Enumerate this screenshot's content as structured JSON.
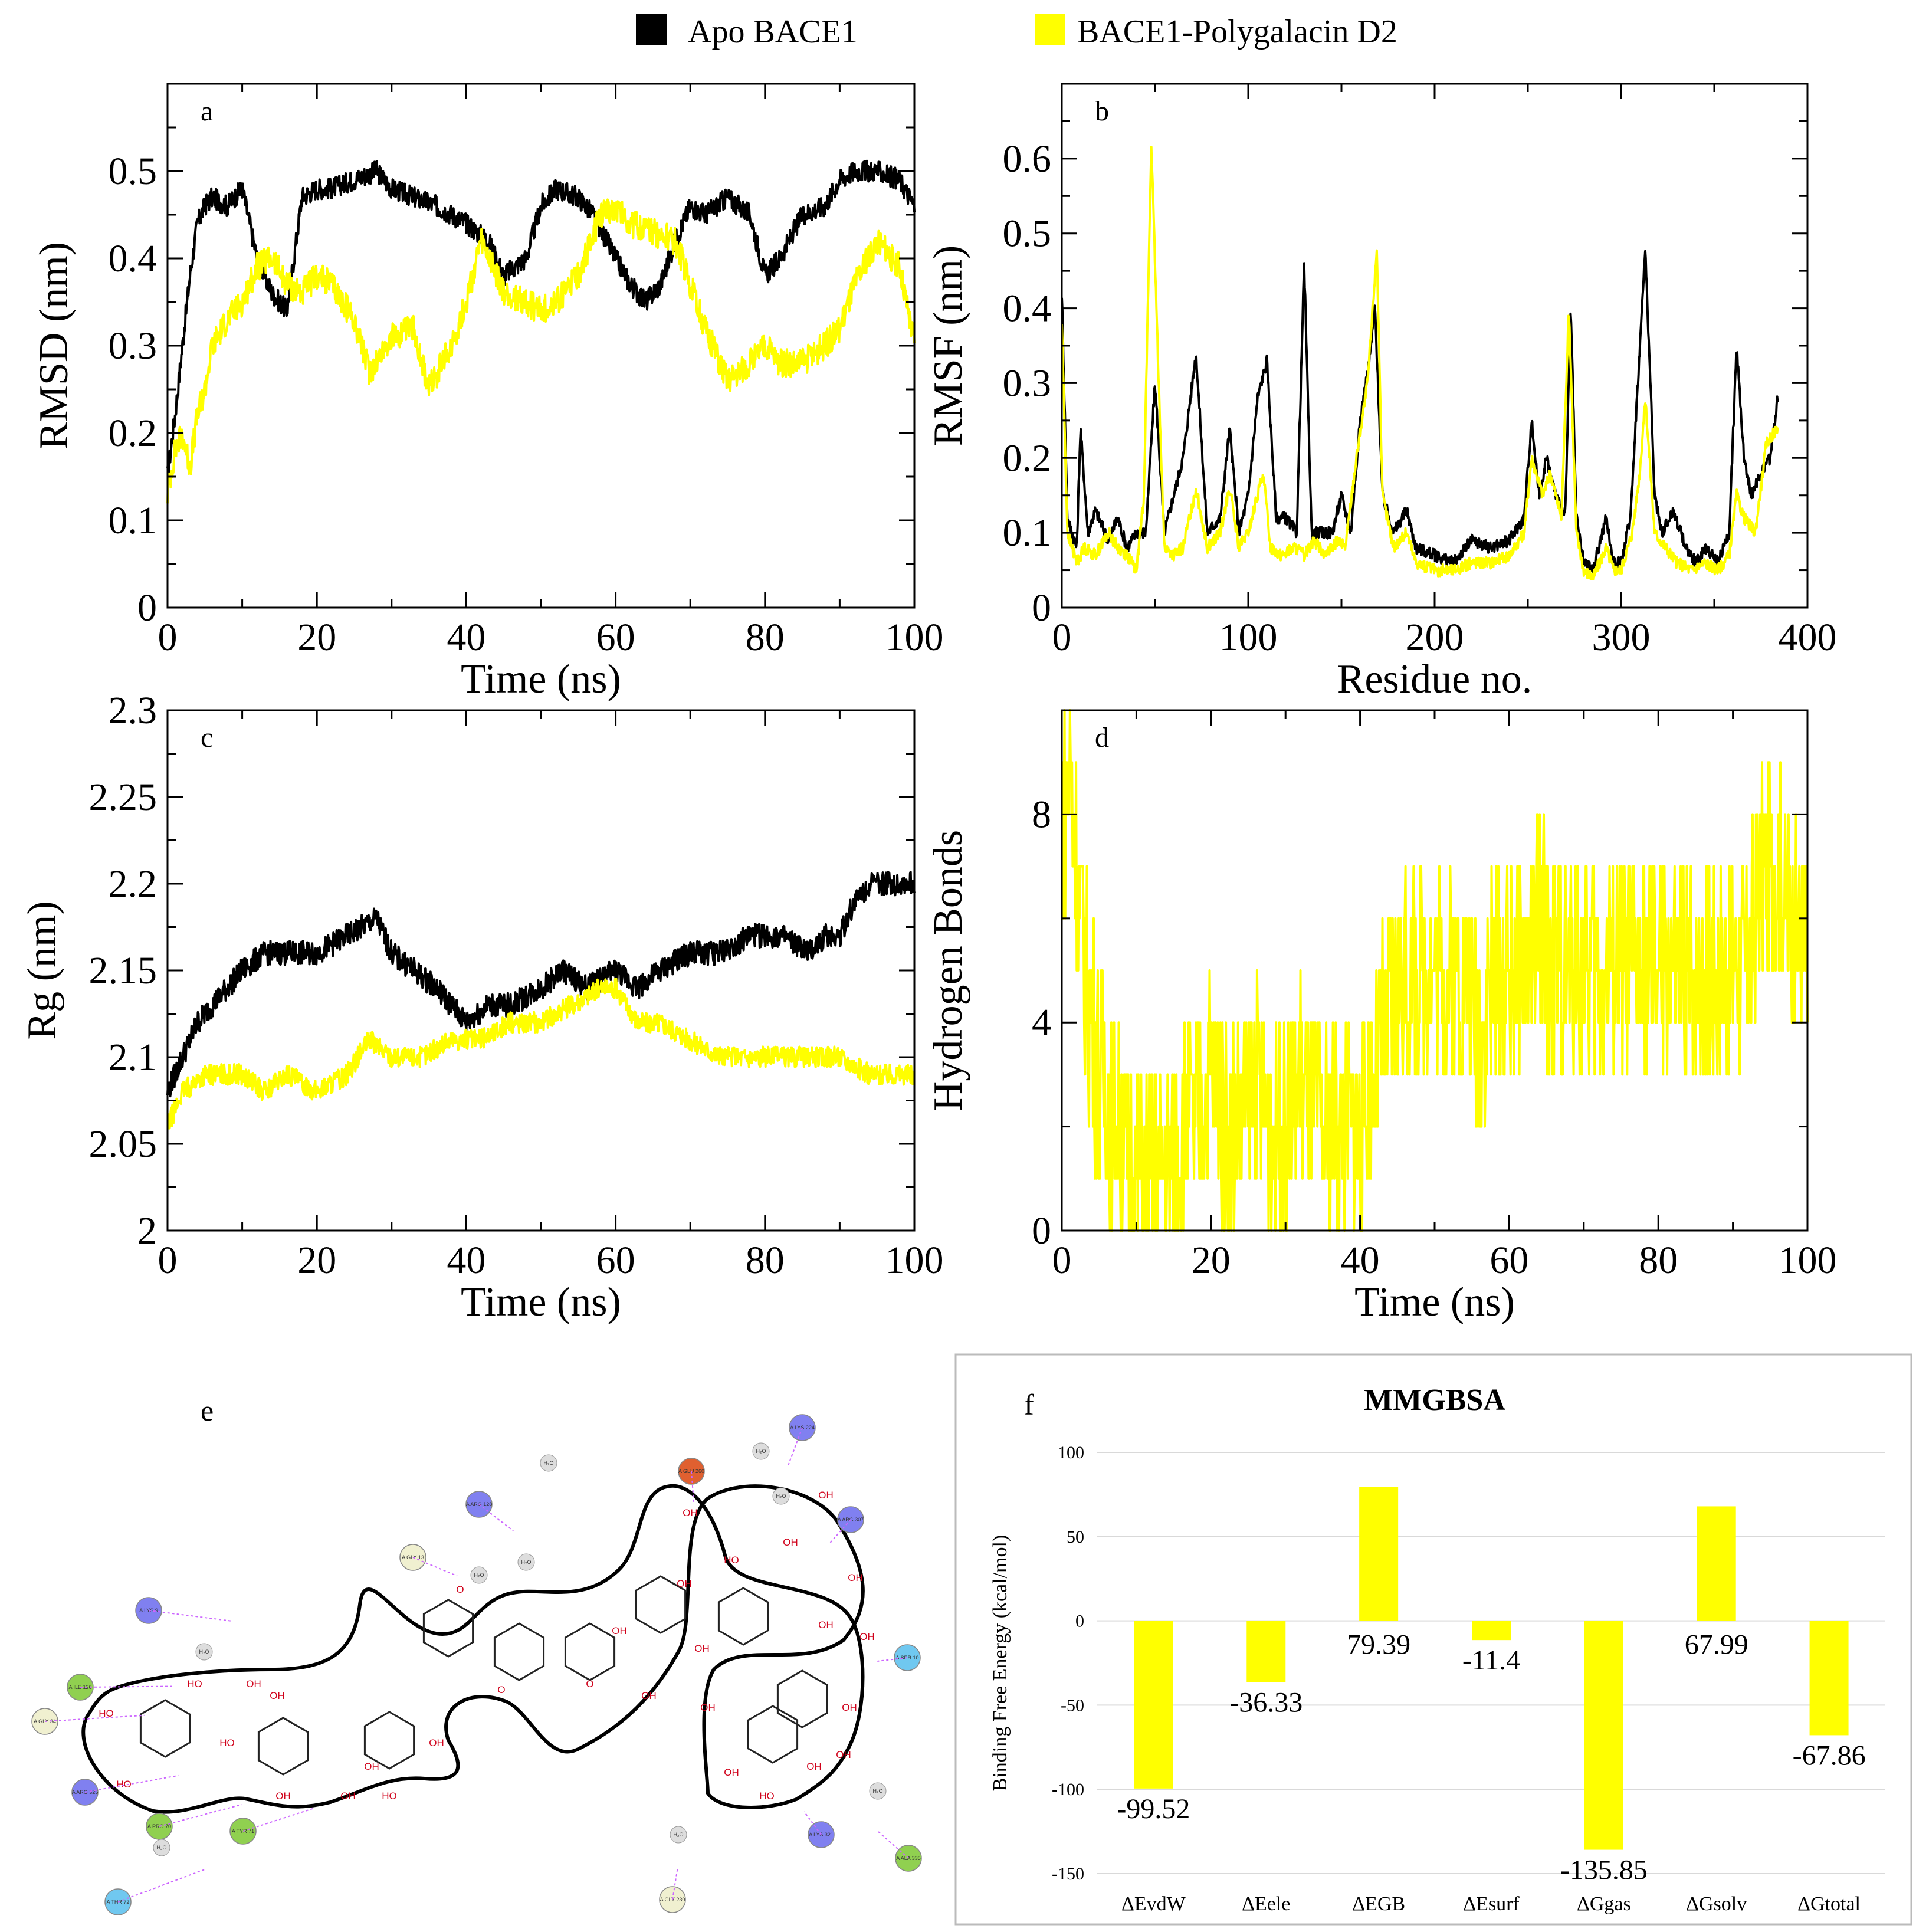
{
  "legend": [
    {
      "name": "Apo BACE1",
      "color": "#000000"
    },
    {
      "name": "BACE1-Polygalacin D2",
      "color": "#ffff00"
    }
  ],
  "colors": {
    "apo": "#000000",
    "complex": "#ffff00",
    "axis": "#000000",
    "panel_f_border": "#bbbbbb",
    "ligand_o": "#d0021b",
    "interaction": "#cc66ff"
  },
  "chart_data": [
    {
      "panel": "a",
      "type": "line",
      "xlabel": "Time (ns)",
      "ylabel": "RMSD (nm)",
      "xlim": [
        0,
        100
      ],
      "ylim": [
        0,
        0.6
      ],
      "xticks": [
        0,
        20,
        40,
        60,
        80,
        100
      ],
      "yticks": [
        0,
        0.1,
        0.2,
        0.3,
        0.4,
        0.5
      ],
      "ytick_labels": [
        "0",
        "0.1",
        "0.2",
        "0.3",
        "0.4",
        "0.5"
      ],
      "series": [
        {
          "name": "Apo BACE1",
          "color": "#000000",
          "noise": 0.012,
          "x": [
            0,
            1,
            2,
            3,
            4,
            5,
            6,
            8,
            10,
            12,
            14,
            16,
            18,
            20,
            22,
            25,
            28,
            30,
            33,
            36,
            40,
            43,
            45,
            48,
            50,
            52,
            55,
            57,
            60,
            62,
            64,
            66,
            68,
            70,
            72,
            75,
            78,
            80,
            82,
            85,
            88,
            90,
            92,
            95,
            98,
            100
          ],
          "y": [
            0.15,
            0.22,
            0.3,
            0.38,
            0.44,
            0.46,
            0.47,
            0.46,
            0.48,
            0.4,
            0.36,
            0.34,
            0.47,
            0.48,
            0.48,
            0.49,
            0.5,
            0.48,
            0.47,
            0.46,
            0.44,
            0.42,
            0.38,
            0.4,
            0.46,
            0.48,
            0.47,
            0.45,
            0.4,
            0.37,
            0.35,
            0.37,
            0.42,
            0.46,
            0.45,
            0.47,
            0.45,
            0.38,
            0.4,
            0.45,
            0.46,
            0.49,
            0.5,
            0.5,
            0.49,
            0.46
          ]
        },
        {
          "name": "BACE1-Polygalacin D2",
          "color": "#ffff00",
          "noise": 0.016,
          "x": [
            0,
            1,
            2,
            3,
            4,
            5,
            6,
            8,
            10,
            12,
            14,
            16,
            18,
            20,
            22,
            25,
            27,
            30,
            33,
            35,
            38,
            40,
            42,
            45,
            48,
            50,
            52,
            55,
            58,
            60,
            62,
            65,
            68,
            70,
            72,
            75,
            78,
            80,
            82,
            85,
            88,
            90,
            92,
            95,
            98,
            100
          ],
          "y": [
            0.13,
            0.18,
            0.2,
            0.16,
            0.22,
            0.25,
            0.3,
            0.33,
            0.35,
            0.39,
            0.4,
            0.37,
            0.36,
            0.38,
            0.37,
            0.33,
            0.27,
            0.31,
            0.32,
            0.25,
            0.3,
            0.35,
            0.42,
            0.36,
            0.35,
            0.34,
            0.35,
            0.38,
            0.45,
            0.46,
            0.44,
            0.43,
            0.42,
            0.37,
            0.32,
            0.26,
            0.28,
            0.3,
            0.28,
            0.28,
            0.3,
            0.32,
            0.37,
            0.42,
            0.39,
            0.3
          ]
        }
      ]
    },
    {
      "panel": "b",
      "type": "line",
      "xlabel": "Residue no.",
      "ylabel": "RMSF (nm)",
      "xlim": [
        0,
        400
      ],
      "ylim": [
        0,
        0.7
      ],
      "xticks": [
        0,
        100,
        200,
        300,
        400
      ],
      "yticks": [
        0,
        0.1,
        0.2,
        0.3,
        0.4,
        0.5,
        0.6
      ],
      "ytick_labels": [
        "0",
        "0.1",
        "0.2",
        "0.3",
        "0.4",
        "0.5",
        "0.6"
      ],
      "series": [
        {
          "name": "Apo BACE1",
          "color": "#000000",
          "noise": 0.008,
          "x": [
            0,
            3,
            8,
            10,
            14,
            18,
            25,
            30,
            35,
            40,
            45,
            50,
            55,
            60,
            65,
            72,
            78,
            85,
            90,
            95,
            100,
            105,
            110,
            115,
            120,
            126,
            130,
            134,
            140,
            145,
            150,
            155,
            160,
            165,
            168,
            172,
            178,
            185,
            190,
            200,
            210,
            220,
            230,
            240,
            248,
            252,
            256,
            260,
            265,
            270,
            273,
            276,
            280,
            285,
            292,
            296,
            300,
            305,
            309,
            313,
            318,
            322,
            328,
            335,
            340,
            346,
            352,
            358,
            362,
            366,
            370,
            375,
            380,
            384
          ],
          "y": [
            0.42,
            0.12,
            0.08,
            0.24,
            0.1,
            0.13,
            0.09,
            0.12,
            0.08,
            0.1,
            0.1,
            0.3,
            0.1,
            0.15,
            0.2,
            0.34,
            0.1,
            0.12,
            0.24,
            0.1,
            0.15,
            0.28,
            0.33,
            0.12,
            0.12,
            0.1,
            0.46,
            0.1,
            0.1,
            0.1,
            0.15,
            0.1,
            0.25,
            0.33,
            0.4,
            0.15,
            0.1,
            0.13,
            0.08,
            0.07,
            0.06,
            0.09,
            0.08,
            0.09,
            0.12,
            0.25,
            0.15,
            0.2,
            0.15,
            0.12,
            0.4,
            0.12,
            0.06,
            0.05,
            0.12,
            0.06,
            0.06,
            0.12,
            0.3,
            0.48,
            0.15,
            0.1,
            0.13,
            0.08,
            0.06,
            0.08,
            0.06,
            0.1,
            0.35,
            0.2,
            0.15,
            0.18,
            0.2,
            0.28
          ]
        },
        {
          "name": "BACE1-Polygalacin D2",
          "color": "#ffff00",
          "noise": 0.008,
          "x": [
            0,
            3,
            8,
            12,
            18,
            25,
            30,
            35,
            40,
            44,
            48,
            52,
            55,
            60,
            65,
            72,
            78,
            85,
            90,
            95,
            100,
            108,
            112,
            118,
            125,
            130,
            135,
            142,
            148,
            152,
            158,
            164,
            169,
            172,
            178,
            185,
            190,
            200,
            210,
            220,
            230,
            240,
            248,
            252,
            258,
            262,
            268,
            272,
            276,
            280,
            285,
            292,
            296,
            300,
            306,
            310,
            313,
            318,
            324,
            330,
            338,
            345,
            352,
            358,
            362,
            366,
            372,
            378,
            384
          ],
          "y": [
            0.38,
            0.1,
            0.06,
            0.08,
            0.07,
            0.1,
            0.08,
            0.07,
            0.05,
            0.15,
            0.62,
            0.3,
            0.08,
            0.07,
            0.08,
            0.16,
            0.08,
            0.1,
            0.16,
            0.08,
            0.1,
            0.18,
            0.08,
            0.07,
            0.08,
            0.07,
            0.09,
            0.07,
            0.09,
            0.08,
            0.2,
            0.3,
            0.48,
            0.15,
            0.08,
            0.1,
            0.06,
            0.05,
            0.05,
            0.06,
            0.06,
            0.07,
            0.1,
            0.2,
            0.15,
            0.18,
            0.12,
            0.4,
            0.1,
            0.05,
            0.04,
            0.08,
            0.05,
            0.05,
            0.1,
            0.18,
            0.28,
            0.1,
            0.08,
            0.06,
            0.05,
            0.06,
            0.05,
            0.07,
            0.15,
            0.12,
            0.1,
            0.22,
            0.24
          ]
        }
      ]
    },
    {
      "panel": "c",
      "type": "line",
      "xlabel": "Time (ns)",
      "ylabel": "Rg (nm)",
      "xlim": [
        0,
        100
      ],
      "ylim": [
        2.0,
        2.3
      ],
      "xticks": [
        0,
        20,
        40,
        60,
        80,
        100
      ],
      "yticks": [
        2.0,
        2.05,
        2.1,
        2.15,
        2.2,
        2.25,
        2.3
      ],
      "ytick_labels": [
        "2",
        "2.05",
        "2.1",
        "2.15",
        "2.2",
        "2.25",
        "2.3"
      ],
      "series": [
        {
          "name": "Apo BACE1",
          "color": "#000000",
          "noise": 0.007,
          "x": [
            0,
            2,
            4,
            6,
            8,
            10,
            13,
            16,
            20,
            24,
            28,
            30,
            33,
            36,
            40,
            43,
            46,
            50,
            53,
            56,
            60,
            63,
            66,
            70,
            74,
            78,
            82,
            86,
            88,
            90,
            92,
            94,
            96,
            98,
            100
          ],
          "y": [
            2.08,
            2.1,
            2.12,
            2.13,
            2.14,
            2.15,
            2.16,
            2.16,
            2.16,
            2.17,
            2.18,
            2.16,
            2.15,
            2.14,
            2.12,
            2.13,
            2.13,
            2.14,
            2.15,
            2.14,
            2.15,
            2.14,
            2.15,
            2.16,
            2.16,
            2.17,
            2.17,
            2.16,
            2.17,
            2.17,
            2.19,
            2.2,
            2.2,
            2.2,
            2.2
          ]
        },
        {
          "name": "BACE1-Polygalacin D2",
          "color": "#ffff00",
          "noise": 0.006,
          "x": [
            0,
            2,
            5,
            8,
            10,
            13,
            16,
            20,
            24,
            27,
            30,
            34,
            38,
            42,
            46,
            50,
            54,
            58,
            60,
            63,
            66,
            70,
            74,
            78,
            82,
            86,
            90,
            94,
            98,
            100
          ],
          "y": [
            2.06,
            2.08,
            2.09,
            2.09,
            2.09,
            2.08,
            2.09,
            2.08,
            2.09,
            2.11,
            2.1,
            2.1,
            2.11,
            2.11,
            2.12,
            2.12,
            2.13,
            2.14,
            2.14,
            2.12,
            2.12,
            2.11,
            2.1,
            2.1,
            2.1,
            2.1,
            2.1,
            2.09,
            2.09,
            2.09
          ]
        }
      ]
    },
    {
      "panel": "d",
      "type": "line",
      "xlabel": "Time (ns)",
      "ylabel": "Hydrogen Bonds",
      "xlim": [
        0,
        100
      ],
      "ylim": [
        0,
        10
      ],
      "xticks": [
        0,
        20,
        40,
        60,
        80,
        100
      ],
      "yticks": [
        0,
        4,
        8
      ],
      "ytick_labels": [
        "0",
        "4",
        "8"
      ],
      "series": [
        {
          "name": "BACE1-Polygalacin D2",
          "color": "#ffff00",
          "noise": 0,
          "x": [
            0,
            1,
            2,
            3,
            4,
            5,
            6,
            7,
            8,
            10,
            12,
            14,
            16,
            18,
            20,
            22,
            24,
            26,
            28,
            30,
            32,
            34,
            36,
            38,
            40,
            42,
            44,
            46,
            48,
            50,
            52,
            54,
            56,
            58,
            60,
            62,
            64,
            66,
            68,
            70,
            72,
            74,
            76,
            78,
            80,
            82,
            84,
            86,
            88,
            90,
            92,
            94,
            96,
            98,
            100
          ],
          "y": [
            8,
            9,
            7,
            5,
            4,
            3,
            3,
            2,
            2,
            1,
            1,
            1,
            2,
            2,
            3,
            2,
            2,
            3,
            2,
            2,
            3,
            2,
            2,
            2,
            2,
            3,
            4,
            5,
            5,
            5,
            5,
            5,
            4,
            5,
            5,
            5,
            6,
            5,
            5,
            5,
            5,
            5,
            5,
            5,
            5,
            5,
            5,
            5,
            5,
            5,
            5,
            7,
            7,
            6,
            5
          ]
        }
      ]
    },
    {
      "panel": "f",
      "type": "bar",
      "title": "MMGBSA",
      "ylabel": "Binding Free Energy (kcal/mol)",
      "ylim": [
        -150,
        100
      ],
      "yticks": [
        -150,
        -100,
        -50,
        0,
        50,
        100
      ],
      "ytick_labels": [
        "-150",
        "-100",
        "-50",
        "0",
        "50",
        "100"
      ],
      "categories": [
        "ΔEvdW",
        "ΔEele",
        "ΔEGB",
        "ΔEsurf",
        "ΔGgas",
        "ΔGsolv",
        "ΔGtotal"
      ],
      "values": [
        -99.52,
        -36.33,
        79.39,
        -11.4,
        -135.85,
        67.99,
        -67.86
      ],
      "value_labels": [
        "-99.52",
        "-36.33",
        "79.39",
        "-11.4",
        "-135.85",
        "67.99",
        "-67.86"
      ],
      "color": "#ffff00"
    }
  ],
  "panel_e": {
    "label": "e",
    "residues": [
      {
        "code": "A",
        "name": "LYS",
        "num": "224",
        "color": "#8080f0"
      },
      {
        "code": "A",
        "name": "GLU",
        "num": "260",
        "color": "#e06030"
      },
      {
        "code": "A",
        "name": "ARG",
        "num": "128",
        "color": "#8080f0"
      },
      {
        "code": "A",
        "name": "ARG",
        "num": "307",
        "color": "#8080f0"
      },
      {
        "code": "A",
        "name": "GLY",
        "num": "13",
        "color": "#f0f0d0"
      },
      {
        "code": "A",
        "name": "LYS",
        "num": "9",
        "color": "#8080f0"
      },
      {
        "code": "A",
        "name": "ILE",
        "num": "126",
        "color": "#90d050"
      },
      {
        "code": "A",
        "name": "GLY",
        "num": "34",
        "color": "#f0f0d0"
      },
      {
        "code": "A",
        "name": "SER",
        "num": "10",
        "color": "#70c8f0"
      },
      {
        "code": "A",
        "name": "ARG",
        "num": "325",
        "color": "#8080f0"
      },
      {
        "code": "A",
        "name": "PRO",
        "num": "70",
        "color": "#90d050"
      },
      {
        "code": "A",
        "name": "TYR",
        "num": "71",
        "color": "#90d050"
      },
      {
        "code": "A",
        "name": "THR",
        "num": "72",
        "color": "#70c8f0"
      },
      {
        "code": "A",
        "name": "GLY",
        "num": "230",
        "color": "#f0f0d0"
      },
      {
        "code": "A",
        "name": "LYS",
        "num": "321",
        "color": "#8080f0"
      },
      {
        "code": "A",
        "name": "ALA",
        "num": "335",
        "color": "#90d050"
      }
    ],
    "waters": [
      "H₂O",
      "H₂O",
      "H₂O",
      "H₂O",
      "H₂O",
      "H₂O",
      "H₂O",
      "H₂O",
      "H₂O"
    ],
    "atom_labels": [
      "HO",
      "HO",
      "OH",
      "HO",
      "OH",
      "OH",
      "HO",
      "OH",
      "OH",
      "OH",
      "HO",
      "O",
      "O",
      "O",
      "O",
      "OH",
      "OH",
      "OH",
      "OH",
      "OH",
      "OH",
      "HO",
      "OH",
      "OH",
      "OH",
      "OH",
      "OH",
      "OH",
      "HO",
      "OH",
      "OH",
      "OH"
    ]
  }
}
